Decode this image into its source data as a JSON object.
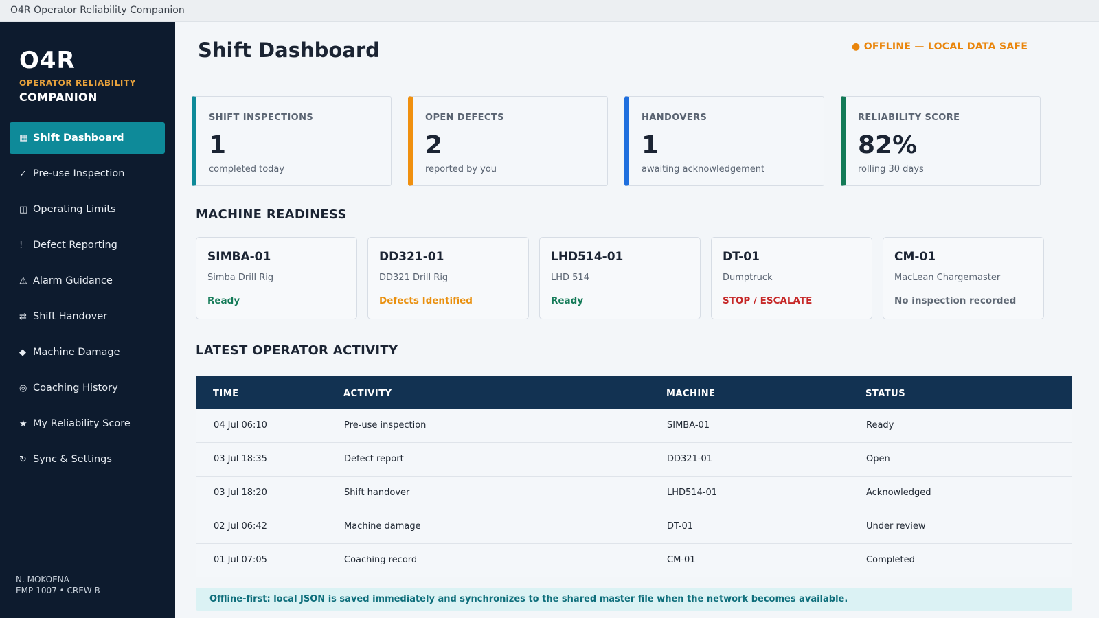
{
  "window": {
    "title": "O4R Operator Reliability Companion"
  },
  "brand": {
    "name": "O4R",
    "line1": "OPERATOR RELIABILITY",
    "line2": "COMPANION"
  },
  "nav": [
    {
      "icon": "▦",
      "icon_name": "dashboard-icon",
      "label": "Shift Dashboard",
      "active": true
    },
    {
      "icon": "✓",
      "icon_name": "check-icon",
      "label": "Pre-use Inspection"
    },
    {
      "icon": "◫",
      "icon_name": "limits-icon",
      "label": "Operating Limits"
    },
    {
      "icon": "!",
      "icon_name": "exclamation-icon",
      "label": "Defect Reporting"
    },
    {
      "icon": "⚠",
      "icon_name": "warning-icon",
      "label": "Alarm Guidance"
    },
    {
      "icon": "⇄",
      "icon_name": "swap-icon",
      "label": "Shift Handover"
    },
    {
      "icon": "◆",
      "icon_name": "diamond-icon",
      "label": "Machine Damage"
    },
    {
      "icon": "◎",
      "icon_name": "target-icon",
      "label": "Coaching History"
    },
    {
      "icon": "★",
      "icon_name": "star-icon",
      "label": "My Reliability Score"
    },
    {
      "icon": "↻",
      "icon_name": "sync-icon",
      "label": "Sync & Settings"
    }
  ],
  "user": {
    "name": "N. MOKOENA",
    "details": "EMP-1007 • CREW B"
  },
  "header": {
    "title": "Shift Dashboard",
    "offline_status": "● OFFLINE — LOCAL DATA SAFE"
  },
  "kpis": [
    {
      "label": "SHIFT INSPECTIONS",
      "value": "1",
      "sub": "completed today",
      "color": "#0e8a99"
    },
    {
      "label": "OPEN DEFECTS",
      "value": "2",
      "sub": "reported by you",
      "color": "#f0900f"
    },
    {
      "label": "HANDOVERS",
      "value": "1",
      "sub": "awaiting acknowledgement",
      "color": "#1f6fde"
    },
    {
      "label": "RELIABILITY SCORE",
      "value": "82%",
      "sub": "rolling 30 days",
      "color": "#137a57"
    }
  ],
  "readiness": {
    "title": "MACHINE READINESS",
    "machines": [
      {
        "id": "SIMBA-01",
        "name": "Simba Drill Rig",
        "status": "Ready",
        "status_color": "#137a57"
      },
      {
        "id": "DD321-01",
        "name": "DD321 Drill Rig",
        "status": "Defects Identified",
        "status_color": "#e9900f"
      },
      {
        "id": "LHD514-01",
        "name": "LHD 514",
        "status": "Ready",
        "status_color": "#137a57"
      },
      {
        "id": "DT-01",
        "name": "Dumptruck",
        "status": "STOP / ESCALATE",
        "status_color": "#c62828"
      },
      {
        "id": "CM-01",
        "name": "MacLean Chargemaster",
        "status": "No inspection recorded",
        "status_color": "#5f6874"
      }
    ]
  },
  "activity": {
    "title": "LATEST OPERATOR ACTIVITY",
    "columns": [
      "TIME",
      "ACTIVITY",
      "MACHINE",
      "STATUS"
    ],
    "rows": [
      [
        "04 Jul 06:10",
        "Pre-use inspection",
        "SIMBA-01",
        "Ready"
      ],
      [
        "03 Jul 18:35",
        "Defect report",
        "DD321-01",
        "Open"
      ],
      [
        "03 Jul 18:20",
        "Shift handover",
        "LHD514-01",
        "Acknowledged"
      ],
      [
        "02 Jul 06:42",
        "Machine damage",
        "DT-01",
        "Under review"
      ],
      [
        "01 Jul 07:05",
        "Coaching record",
        "CM-01",
        "Completed"
      ]
    ]
  },
  "footer_note": "Offline-first: local JSON is saved immediately and synchronizes to the shared master file when the network becomes available."
}
